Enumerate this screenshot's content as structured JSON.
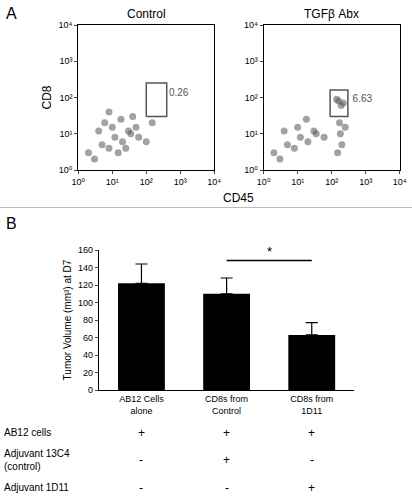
{
  "chart_data": [
    {
      "type": "scatter",
      "panel": "A",
      "title": "Control",
      "xlabel": "CD45",
      "ylabel": "CD8",
      "log": true,
      "xlim": [
        1,
        10000
      ],
      "ylim": [
        1,
        10000
      ],
      "xticks": [
        {
          "value": 1,
          "label": "10⁰"
        },
        {
          "value": 10,
          "label": "10¹"
        },
        {
          "value": 100,
          "label": "10²"
        },
        {
          "value": 1000,
          "label": "10³"
        },
        {
          "value": 10000,
          "label": "10⁴"
        }
      ],
      "yticks": [
        {
          "value": 1,
          "label": "10⁰"
        },
        {
          "value": 10,
          "label": "10¹"
        },
        {
          "value": 100,
          "label": "10²"
        },
        {
          "value": 1000,
          "label": "10³"
        },
        {
          "value": 10000,
          "label": "10⁴"
        }
      ],
      "x": [
        2,
        3,
        5,
        8,
        12,
        20,
        35,
        60,
        100,
        4,
        6,
        10,
        18,
        30,
        50,
        15,
        25,
        8,
        40,
        150
      ],
      "y": [
        3,
        2,
        5,
        4,
        8,
        6,
        10,
        8,
        6,
        12,
        20,
        15,
        25,
        12,
        15,
        3,
        4,
        40,
        30,
        20
      ],
      "color": "#555555",
      "marker": "circle",
      "gate": {
        "x": [
          100,
          400
        ],
        "y": [
          30,
          250
        ],
        "label": "0.26",
        "label_x": 900,
        "label_y": 130
      }
    },
    {
      "type": "scatter",
      "title": "TGFβ Abx",
      "log": true,
      "xlim": [
        1,
        10000
      ],
      "ylim": [
        1,
        10000
      ],
      "xticks": [
        {
          "value": 1,
          "label": "10⁰"
        },
        {
          "value": 10,
          "label": "10¹"
        },
        {
          "value": 100,
          "label": "10²"
        },
        {
          "value": 1000,
          "label": "10³"
        },
        {
          "value": 10000,
          "label": "10⁴"
        }
      ],
      "yticks": [
        {
          "value": 1,
          "label": "10⁰"
        },
        {
          "value": 10,
          "label": "10¹"
        },
        {
          "value": 100,
          "label": "10²"
        },
        {
          "value": 1000,
          "label": "10³"
        },
        {
          "value": 10000,
          "label": "10⁴"
        }
      ],
      "x": [
        2,
        3,
        5,
        8,
        12,
        20,
        35,
        60,
        4,
        10,
        18,
        30,
        150,
        200,
        180,
        250,
        160,
        220,
        140,
        190,
        170
      ],
      "y": [
        3,
        2,
        5,
        4,
        8,
        6,
        10,
        8,
        12,
        15,
        25,
        12,
        3,
        5,
        10,
        15,
        80,
        70,
        90,
        60,
        20
      ],
      "color": "#555555",
      "marker": "circle",
      "gate": {
        "x": [
          90,
          300
        ],
        "y": [
          30,
          160
        ],
        "label": "6.63",
        "label_x": 800,
        "label_y": 90
      }
    },
    {
      "type": "bar",
      "panel": "B",
      "ylabel": "Tumor Volume (mm³) at D7",
      "categories": [
        "AB12 Cells alone",
        "CD8s from Control",
        "CD8s from 1D11"
      ],
      "values": [
        122,
        110,
        63
      ],
      "errors": [
        22,
        18,
        14
      ],
      "color": "#000000",
      "ylim": [
        0,
        160
      ],
      "yticks": [
        0,
        20,
        40,
        60,
        80,
        100,
        120,
        140,
        160
      ],
      "significance": {
        "from": 1,
        "to": 2,
        "y": 148,
        "label": "*"
      },
      "table": {
        "rows": [
          {
            "label": "AB12 cells",
            "marks": [
              "+",
              "+",
              "+"
            ]
          },
          {
            "label": "Adjuvant 13C4 (control)",
            "marks": [
              "-",
              "+",
              "-"
            ]
          },
          {
            "label": "Adjuvant 1D11",
            "marks": [
              "-",
              "-",
              "+"
            ]
          }
        ]
      }
    }
  ]
}
